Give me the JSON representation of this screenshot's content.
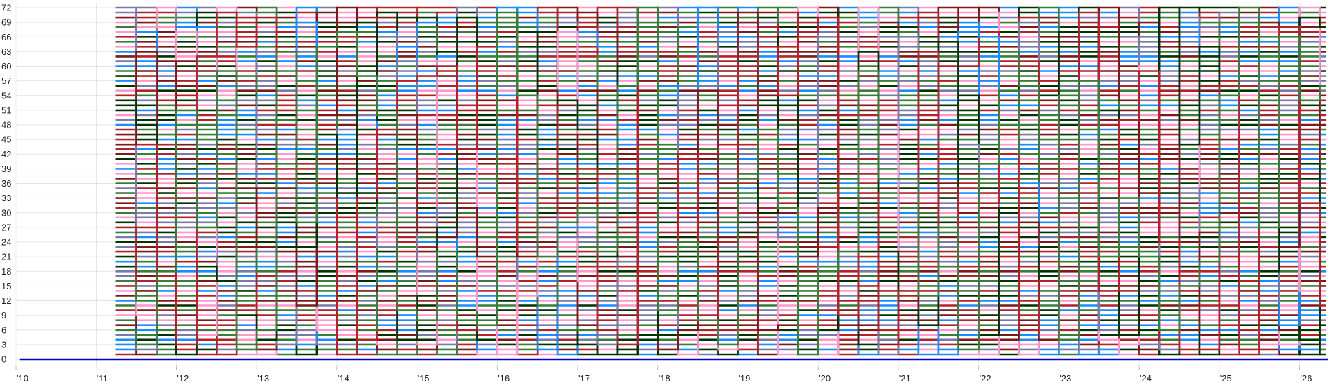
{
  "chart_data": {
    "type": "line",
    "title": "",
    "xlabel": "",
    "ylabel": "",
    "xlim": [
      2010.0,
      2026.35
    ],
    "ylim": [
      0,
      72
    ],
    "y_ticks": [
      0,
      3,
      6,
      9,
      12,
      15,
      18,
      21,
      24,
      27,
      30,
      33,
      36,
      39,
      42,
      45,
      48,
      51,
      54,
      57,
      60,
      63,
      66,
      69,
      72
    ],
    "x_ticks": [
      {
        "value": 2010,
        "label": "'10"
      },
      {
        "value": 2011,
        "label": "'11"
      },
      {
        "value": 2012,
        "label": "'12"
      },
      {
        "value": 2013,
        "label": "'13"
      },
      {
        "value": 2014,
        "label": "'14"
      },
      {
        "value": 2015,
        "label": "'15"
      },
      {
        "value": 2016,
        "label": "'16"
      },
      {
        "value": 2017,
        "label": "'17"
      },
      {
        "value": 2018,
        "label": "'18"
      },
      {
        "value": 2019,
        "label": "'19"
      },
      {
        "value": 2020,
        "label": "'20"
      },
      {
        "value": 2021,
        "label": "'21"
      },
      {
        "value": 2022,
        "label": "'22"
      },
      {
        "value": 2023,
        "label": "'23"
      },
      {
        "value": 2024,
        "label": "'24"
      },
      {
        "value": 2025,
        "label": "'25"
      },
      {
        "value": 2026,
        "label": "'26"
      }
    ],
    "grid": true,
    "series_count": 72,
    "series_colors": [
      "#b0232a",
      "#3a7d3a",
      "#1a8cff",
      "#ff99cc",
      "#7a7aaa",
      "#7a1a1a",
      "#003300"
    ],
    "baseline_series": {
      "color": "#0000cc",
      "x": [
        2010.05,
        2026.35
      ],
      "y": [
        0,
        0
      ]
    },
    "vertical_marker": {
      "x": 2011.0,
      "color": "#999999"
    },
    "change_times": [
      2011.24,
      2011.5,
      2011.76,
      2012.0,
      2012.25,
      2012.5,
      2012.75,
      2013.0,
      2013.25,
      2013.5,
      2013.75,
      2014.0,
      2014.25,
      2014.5,
      2014.75,
      2015.0,
      2015.25,
      2015.5,
      2015.75,
      2016.0,
      2016.25,
      2016.5,
      2016.75,
      2017.0,
      2017.25,
      2017.5,
      2017.75,
      2018.0,
      2018.25,
      2018.5,
      2018.75,
      2019.0,
      2019.25,
      2019.5,
      2019.75,
      2020.0,
      2020.25,
      2020.5,
      2020.75,
      2021.0,
      2021.25,
      2021.5,
      2021.75,
      2022.0,
      2022.25,
      2022.5,
      2022.75,
      2023.0,
      2023.25,
      2023.5,
      2023.75,
      2024.0,
      2024.25,
      2024.5,
      2024.75,
      2025.0,
      2025.25,
      2025.5,
      2025.75,
      2026.0,
      2026.25,
      2026.33
    ],
    "note_series_shape": "step lines; each series holds one integer rank 1-72 between change times"
  }
}
